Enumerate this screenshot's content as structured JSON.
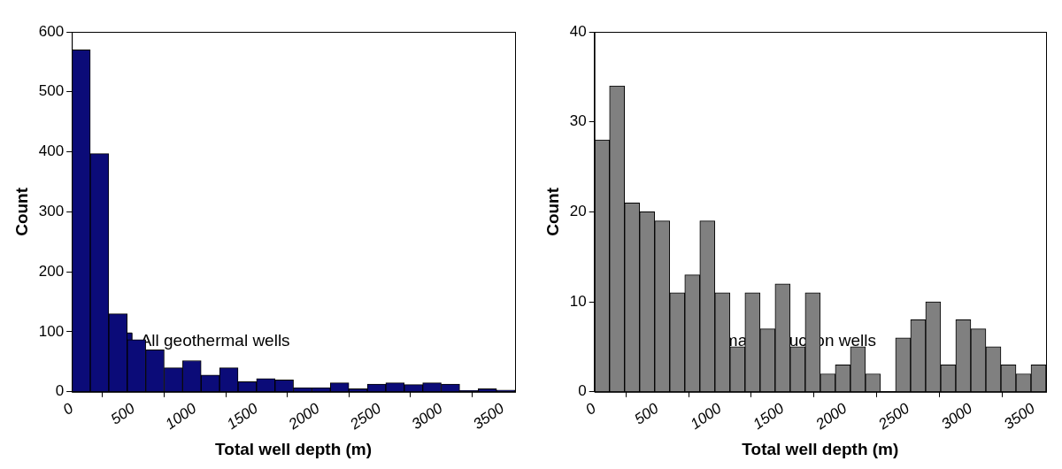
{
  "chart_data": [
    {
      "type": "histogram",
      "x_label": "Total well depth (m)",
      "y_label": "Count",
      "series": [
        {
          "name": "All geothermal wells",
          "color": "#0b0b78",
          "values": [
            570,
            397,
            130,
            87,
            70,
            40,
            52,
            28,
            40,
            17,
            22,
            20,
            7,
            7,
            15,
            5,
            13,
            15,
            12,
            15,
            13,
            2,
            5,
            3
          ]
        }
      ],
      "bins": [
        0,
        150,
        300,
        450,
        600,
        750,
        900,
        1050,
        1200,
        1350,
        1500,
        1650,
        1800,
        1950,
        2100,
        2250,
        2400,
        2550,
        2700,
        2850,
        3000,
        3150,
        3300,
        3450,
        3600
      ],
      "xlim": [
        0,
        3600
      ],
      "xticks": [
        0,
        500,
        1000,
        1500,
        2000,
        2500,
        3000,
        3500
      ],
      "ylim": [
        0,
        600
      ],
      "yticks": [
        0,
        100,
        200,
        300,
        400,
        500,
        600
      ],
      "grid": false,
      "legend": "upper right"
    },
    {
      "type": "histogram",
      "x_label": "Total well depth (m)",
      "y_label": "Count",
      "series": [
        {
          "name": "Geothermal production wells",
          "color": "#808080",
          "values": [
            28,
            34,
            21,
            20,
            19,
            11,
            13,
            19,
            11,
            5,
            11,
            7,
            12,
            5,
            11,
            2,
            3,
            5,
            2,
            0,
            6,
            8,
            10,
            3,
            8,
            7,
            5,
            3,
            2,
            3
          ]
        }
      ],
      "bins": [
        0,
        120,
        240,
        360,
        480,
        600,
        720,
        840,
        960,
        1080,
        1200,
        1320,
        1440,
        1560,
        1680,
        1800,
        1920,
        2040,
        2160,
        2280,
        2400,
        2520,
        2640,
        2760,
        2880,
        3000,
        3120,
        3240,
        3360,
        3480,
        3600
      ],
      "xlim": [
        0,
        3600
      ],
      "xticks": [
        0,
        500,
        1000,
        1500,
        2000,
        2500,
        3000,
        3500
      ],
      "ylim": [
        0,
        40
      ],
      "yticks": [
        0,
        10,
        20,
        30,
        40
      ],
      "grid": false,
      "legend": "upper right"
    }
  ]
}
